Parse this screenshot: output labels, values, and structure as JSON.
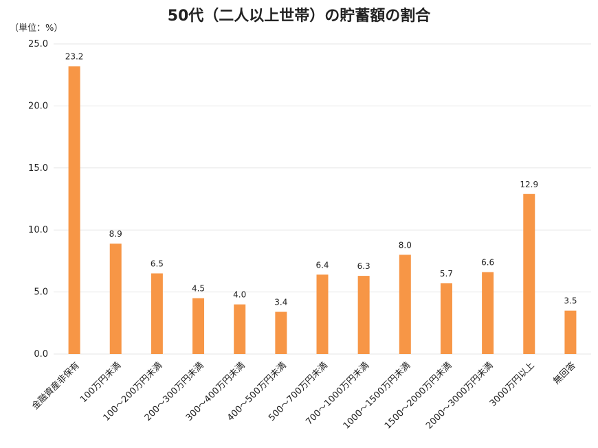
{
  "chart_data": {
    "type": "bar",
    "title": "50代（二人以上世帯）の貯蓄額の割合",
    "unit_label": "（単位：%）",
    "categories": [
      "金融資産非保有",
      "100万円未満",
      "100～200万円未満",
      "200～300万円未満",
      "300～400万円未満",
      "400～500万円未満",
      "500～700万円未満",
      "700～1000万円未満",
      "1000～1500万円未満",
      "1500～2000万円未満",
      "2000～3000万円未満",
      "3000万円以上",
      "無回答"
    ],
    "values": [
      23.2,
      8.9,
      6.5,
      4.5,
      4.0,
      3.4,
      6.4,
      6.3,
      8.0,
      5.7,
      6.6,
      12.9,
      3.5
    ],
    "value_labels": [
      "23.2",
      "8.9",
      "6.5",
      "4.5",
      "4.0",
      "3.4",
      "6.4",
      "6.3",
      "8.0",
      "5.7",
      "6.6",
      "12.9",
      "3.5"
    ],
    "ylim": [
      0,
      25
    ],
    "yticks": [
      "0.0",
      "5.0",
      "10.0",
      "15.0",
      "20.0",
      "25.0"
    ],
    "grid": true,
    "bar_color": "#F79646"
  }
}
